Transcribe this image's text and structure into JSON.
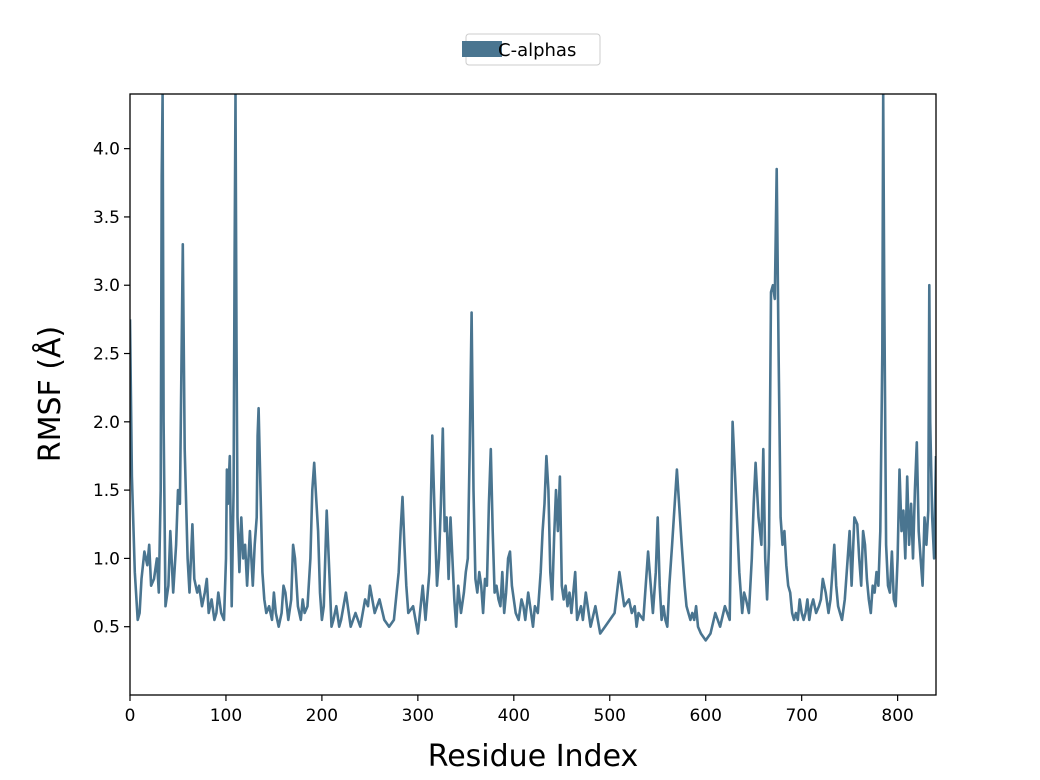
{
  "chart_data": {
    "type": "line",
    "xlabel": "Residue Index",
    "ylabel": "RMSF (Å)",
    "xlim": [
      0,
      840
    ],
    "ylim": [
      0,
      4.4
    ],
    "xticks": [
      0,
      100,
      200,
      300,
      400,
      500,
      600,
      700,
      800
    ],
    "yticks": [
      0.5,
      1.0,
      1.5,
      2.0,
      2.5,
      3.0,
      3.5,
      4.0
    ],
    "xtick_labels": [
      "0",
      "100",
      "200",
      "300",
      "400",
      "500",
      "600",
      "700",
      "800"
    ],
    "ytick_labels": [
      "0.5",
      "1.0",
      "1.5",
      "2.0",
      "2.5",
      "3.0",
      "3.5",
      "4.0"
    ],
    "grid": false,
    "legend_position": "top-center",
    "series": [
      {
        "name": "C-alphas",
        "color": "#4a7590",
        "x": [
          0,
          2,
          5,
          8,
          10,
          12,
          15,
          18,
          20,
          22,
          25,
          28,
          30,
          32,
          33,
          34,
          35,
          37,
          40,
          42,
          45,
          48,
          50,
          52,
          55,
          57,
          60,
          62,
          65,
          67,
          70,
          72,
          75,
          78,
          80,
          82,
          85,
          88,
          90,
          92,
          95,
          98,
          100,
          101,
          102,
          104,
          106,
          108,
          109,
          110,
          111,
          112,
          114,
          116,
          118,
          120,
          122,
          125,
          128,
          130,
          132,
          133,
          134,
          136,
          138,
          140,
          142,
          145,
          148,
          150,
          152,
          155,
          158,
          160,
          162,
          165,
          168,
          170,
          172,
          175,
          178,
          180,
          182,
          185,
          188,
          190,
          192,
          194,
          196,
          198,
          200,
          202,
          205,
          208,
          210,
          212,
          215,
          218,
          220,
          225,
          230,
          235,
          240,
          245,
          248,
          250,
          255,
          260,
          265,
          270,
          275,
          280,
          282,
          284,
          286,
          288,
          290,
          295,
          300,
          305,
          308,
          312,
          315,
          318,
          320,
          322,
          324,
          326,
          328,
          330,
          332,
          334,
          336,
          338,
          340,
          342,
          345,
          348,
          350,
          352,
          354,
          356,
          358,
          360,
          362,
          364,
          366,
          368,
          370,
          372,
          374,
          376,
          378,
          380,
          382,
          384,
          386,
          388,
          390,
          392,
          394,
          396,
          398,
          400,
          402,
          405,
          408,
          410,
          412,
          415,
          418,
          420,
          422,
          425,
          428,
          430,
          432,
          434,
          436,
          438,
          440,
          442,
          444,
          446,
          448,
          450,
          452,
          454,
          456,
          458,
          460,
          462,
          464,
          466,
          468,
          470,
          472,
          475,
          480,
          485,
          490,
          495,
          500,
          505,
          510,
          515,
          520,
          523,
          526,
          528,
          530,
          535,
          540,
          545,
          548,
          550,
          552,
          554,
          556,
          558,
          560,
          562,
          565,
          570,
          575,
          578,
          580,
          582,
          584,
          586,
          588,
          590,
          592,
          595,
          600,
          605,
          610,
          615,
          620,
          625,
          628,
          630,
          635,
          637,
          638,
          640,
          642,
          645,
          648,
          650,
          652,
          655,
          658,
          660,
          662,
          664,
          666,
          668,
          670,
          672,
          674,
          676,
          678,
          680,
          682,
          684,
          686,
          688,
          690,
          692,
          694,
          696,
          698,
          700,
          702,
          704,
          706,
          708,
          710,
          712,
          715,
          718,
          720,
          722,
          725,
          728,
          730,
          732,
          734,
          736,
          738,
          740,
          742,
          745,
          748,
          750,
          752,
          755,
          758,
          760,
          762,
          764,
          766,
          768,
          770,
          772,
          774,
          776,
          778,
          780,
          782,
          784,
          785,
          786,
          788,
          790,
          792,
          794,
          796,
          798,
          800,
          802,
          804,
          806,
          808,
          810,
          812,
          814,
          816,
          818,
          820,
          822,
          824,
          826,
          828,
          830,
          832,
          833,
          834,
          836,
          838,
          840
        ],
        "y": [
          2.75,
          1.6,
          0.9,
          0.55,
          0.6,
          0.85,
          1.05,
          0.95,
          1.1,
          0.8,
          0.85,
          1.0,
          0.75,
          1.5,
          3.8,
          4.4,
          2.0,
          0.65,
          0.8,
          1.2,
          0.75,
          1.1,
          1.5,
          1.4,
          3.3,
          1.8,
          1.0,
          0.75,
          1.25,
          0.85,
          0.75,
          0.8,
          0.65,
          0.75,
          0.85,
          0.6,
          0.7,
          0.55,
          0.6,
          0.75,
          0.6,
          0.55,
          1.0,
          1.65,
          1.4,
          1.75,
          0.65,
          1.5,
          3.2,
          4.4,
          2.6,
          1.3,
          0.9,
          1.3,
          1.0,
          1.1,
          0.8,
          1.2,
          0.8,
          1.1,
          1.3,
          1.9,
          2.1,
          1.5,
          0.9,
          0.7,
          0.6,
          0.65,
          0.55,
          0.75,
          0.6,
          0.5,
          0.6,
          0.8,
          0.75,
          0.55,
          0.7,
          1.1,
          1.0,
          0.65,
          0.55,
          0.7,
          0.6,
          0.65,
          1.0,
          1.5,
          1.7,
          1.45,
          1.2,
          0.75,
          0.55,
          0.65,
          1.35,
          0.85,
          0.5,
          0.55,
          0.65,
          0.5,
          0.55,
          0.75,
          0.5,
          0.6,
          0.5,
          0.7,
          0.65,
          0.8,
          0.6,
          0.7,
          0.55,
          0.5,
          0.55,
          0.9,
          1.2,
          1.45,
          1.1,
          0.8,
          0.6,
          0.65,
          0.45,
          0.8,
          0.55,
          0.9,
          1.9,
          1.2,
          0.8,
          1.0,
          1.4,
          1.95,
          1.2,
          1.3,
          0.85,
          1.3,
          1.0,
          0.7,
          0.5,
          0.8,
          0.6,
          0.75,
          0.9,
          1.0,
          1.8,
          2.8,
          1.5,
          0.85,
          0.75,
          0.9,
          0.8,
          0.6,
          0.85,
          0.8,
          1.4,
          1.8,
          1.2,
          0.75,
          0.8,
          0.7,
          0.65,
          0.9,
          0.6,
          0.75,
          1.0,
          1.05,
          0.8,
          0.7,
          0.6,
          0.55,
          0.7,
          0.65,
          0.55,
          0.75,
          0.6,
          0.5,
          0.65,
          0.6,
          0.9,
          1.2,
          1.4,
          1.75,
          1.5,
          0.9,
          0.7,
          1.15,
          1.5,
          1.2,
          1.6,
          0.8,
          0.7,
          0.8,
          0.65,
          0.75,
          0.6,
          0.75,
          0.9,
          0.55,
          0.6,
          0.65,
          0.55,
          0.75,
          0.5,
          0.65,
          0.45,
          0.5,
          0.55,
          0.6,
          0.9,
          0.65,
          0.7,
          0.6,
          0.65,
          0.5,
          0.6,
          0.55,
          1.05,
          0.6,
          0.9,
          1.3,
          0.8,
          0.55,
          0.65,
          0.55,
          0.5,
          0.8,
          1.1,
          1.65,
          1.1,
          0.8,
          0.65,
          0.6,
          0.55,
          0.6,
          0.55,
          0.65,
          0.5,
          0.45,
          0.4,
          0.45,
          0.6,
          0.5,
          0.65,
          0.55,
          2.0,
          1.7,
          0.9,
          0.7,
          0.6,
          0.75,
          0.7,
          0.6,
          1.0,
          1.4,
          1.7,
          1.3,
          1.1,
          1.8,
          1.0,
          0.7,
          1.1,
          2.95,
          3.0,
          2.9,
          3.85,
          2.5,
          1.3,
          1.1,
          1.2,
          0.95,
          0.8,
          0.75,
          0.6,
          0.55,
          0.6,
          0.55,
          0.7,
          0.6,
          0.55,
          0.6,
          0.7,
          0.55,
          0.65,
          0.7,
          0.6,
          0.65,
          0.7,
          0.85,
          0.75,
          0.6,
          0.7,
          0.9,
          1.1,
          0.8,
          0.65,
          0.6,
          0.55,
          0.7,
          1.0,
          1.2,
          0.8,
          1.3,
          1.25,
          1.0,
          0.8,
          1.2,
          1.1,
          0.85,
          0.7,
          0.6,
          0.8,
          0.75,
          0.9,
          0.8,
          1.2,
          2.5,
          4.4,
          3.0,
          1.1,
          0.8,
          0.75,
          1.05,
          0.7,
          0.65,
          1.0,
          1.65,
          1.2,
          1.35,
          1.0,
          1.6,
          1.1,
          1.4,
          1.0,
          1.5,
          1.85,
          1.2,
          1.0,
          0.8,
          1.3,
          1.1,
          1.35,
          3.0,
          2.0,
          1.3,
          1.0,
          1.75
        ]
      }
    ]
  }
}
